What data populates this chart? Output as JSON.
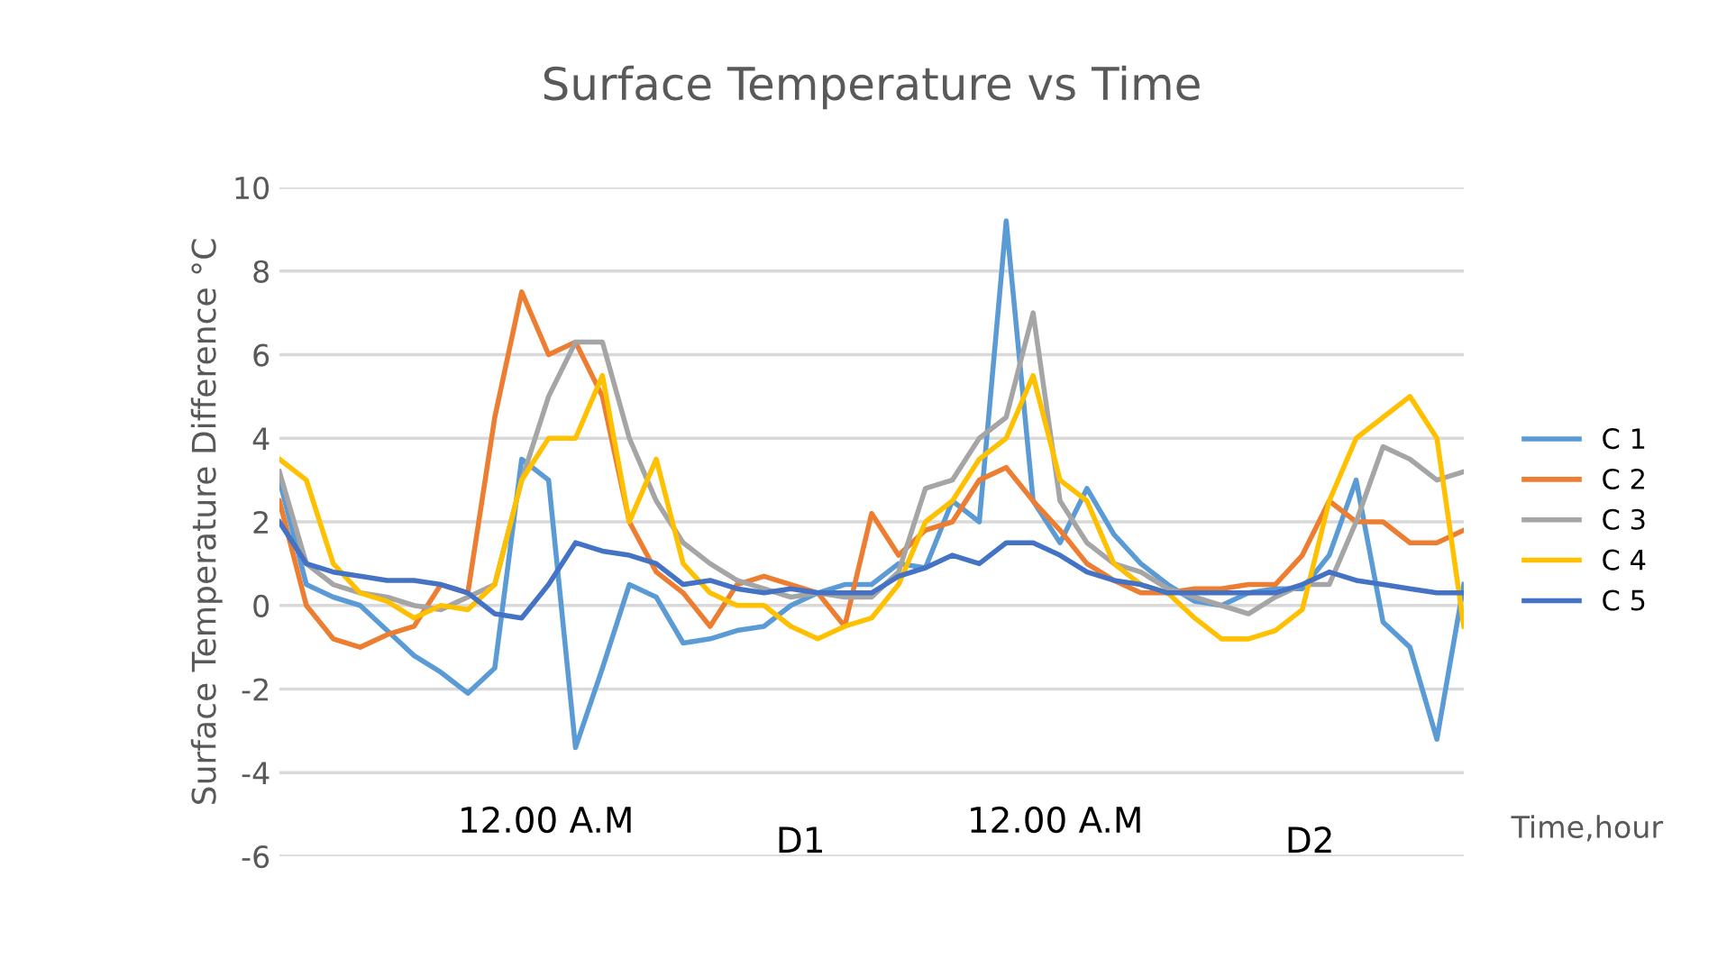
{
  "chart_data": {
    "type": "line",
    "title": "Surface Temperature vs Time",
    "xlabel": "Time,hour",
    "ylabel": "Surface Temperature Difference °C",
    "categories": [
      null,
      null,
      null,
      null,
      null,
      null,
      null,
      null,
      null,
      null,
      null,
      null,
      null,
      null,
      null,
      null,
      null,
      null,
      null,
      null,
      null,
      null,
      null,
      null,
      null,
      null,
      null,
      null,
      null,
      null,
      null,
      null,
      null,
      null,
      null,
      null,
      null,
      null,
      null,
      null,
      null,
      null,
      null,
      null,
      null
    ],
    "series": [
      {
        "name": "C 1",
        "color": "#5b9bd5",
        "values": [
          3.0,
          0.5,
          0.2,
          0,
          -0.6,
          -1.2,
          -1.6,
          -2.1,
          -1.5,
          3.5,
          3.0,
          -3.4,
          -1.5,
          0.5,
          0.2,
          -0.9,
          -0.8,
          -0.6,
          -0.5,
          0,
          0.3,
          0.5,
          0.5,
          1.0,
          0.9,
          2.5,
          2.0,
          9.2,
          2.5,
          1.5,
          2.8,
          1.7,
          1.0,
          0.5,
          0.1,
          0,
          0.3,
          0.4,
          0.4,
          1.2,
          3.0,
          -0.4,
          -1.0,
          -3.2,
          0.5
        ]
      },
      {
        "name": "C 2",
        "color": "#ed7d31",
        "values": [
          2.5,
          0,
          -0.8,
          -1.0,
          -0.7,
          -0.5,
          0.5,
          0.3,
          4.5,
          7.5,
          6.0,
          6.3,
          5.0,
          2.0,
          0.8,
          0.3,
          -0.5,
          0.5,
          0.7,
          0.5,
          0.3,
          -0.5,
          2.2,
          1.2,
          1.8,
          2.0,
          3.0,
          3.3,
          2.5,
          1.8,
          1.0,
          0.6,
          0.3,
          0.3,
          0.4,
          0.4,
          0.5,
          0.5,
          1.2,
          2.5,
          2.0,
          2.0,
          1.5,
          1.5,
          1.8
        ]
      },
      {
        "name": "C 3",
        "color": "#a5a5a5",
        "values": [
          3.2,
          1.0,
          0.5,
          0.3,
          0.2,
          0,
          -0.1,
          0.2,
          0.5,
          3.0,
          5.0,
          6.3,
          6.3,
          4.0,
          2.5,
          1.5,
          1.0,
          0.6,
          0.4,
          0.2,
          0.3,
          0.2,
          0.2,
          0.8,
          2.8,
          3.0,
          4.0,
          4.5,
          7.0,
          2.5,
          1.5,
          1.0,
          0.8,
          0.4,
          0.2,
          0,
          -0.2,
          0.2,
          0.5,
          0.5,
          2.0,
          3.8,
          3.5,
          3.0,
          3.2
        ]
      },
      {
        "name": "C 4",
        "color": "#ffc000",
        "values": [
          3.5,
          3.0,
          1.0,
          0.3,
          0.1,
          -0.3,
          0,
          -0.1,
          0.5,
          3.0,
          4.0,
          4.0,
          5.5,
          2.0,
          3.5,
          1.0,
          0.3,
          0,
          0,
          -0.5,
          -0.8,
          -0.5,
          -0.3,
          0.5,
          2.0,
          2.5,
          3.5,
          4.0,
          5.5,
          3.0,
          2.5,
          1.0,
          0.5,
          0.3,
          -0.3,
          -0.8,
          -0.8,
          -0.6,
          -0.1,
          2.5,
          4.0,
          4.5,
          5.0,
          4.0,
          -0.5
        ]
      },
      {
        "name": "C 5",
        "color": "#4472c4",
        "values": [
          2.0,
          1.0,
          0.8,
          0.7,
          0.6,
          0.6,
          0.5,
          0.3,
          -0.2,
          -0.3,
          0.5,
          1.5,
          1.3,
          1.2,
          1.0,
          0.5,
          0.6,
          0.4,
          0.3,
          0.4,
          0.3,
          0.3,
          0.3,
          0.7,
          0.9,
          1.2,
          1.0,
          1.5,
          1.5,
          1.2,
          0.8,
          0.6,
          0.5,
          0.3,
          0.3,
          0.3,
          0.3,
          0.3,
          0.5,
          0.8,
          0.6,
          0.5,
          0.4,
          0.3,
          0.3
        ]
      }
    ],
    "ylim": [
      -6,
      10
    ],
    "yticks": [
      -6,
      -4,
      -2,
      0,
      2,
      4,
      6,
      8,
      10
    ],
    "grid": "y",
    "legend": "right",
    "marker": "none",
    "line_style": "solid",
    "annotations": [
      "12.00 A.M",
      "D1",
      "12.00 A.M",
      "D2"
    ]
  }
}
